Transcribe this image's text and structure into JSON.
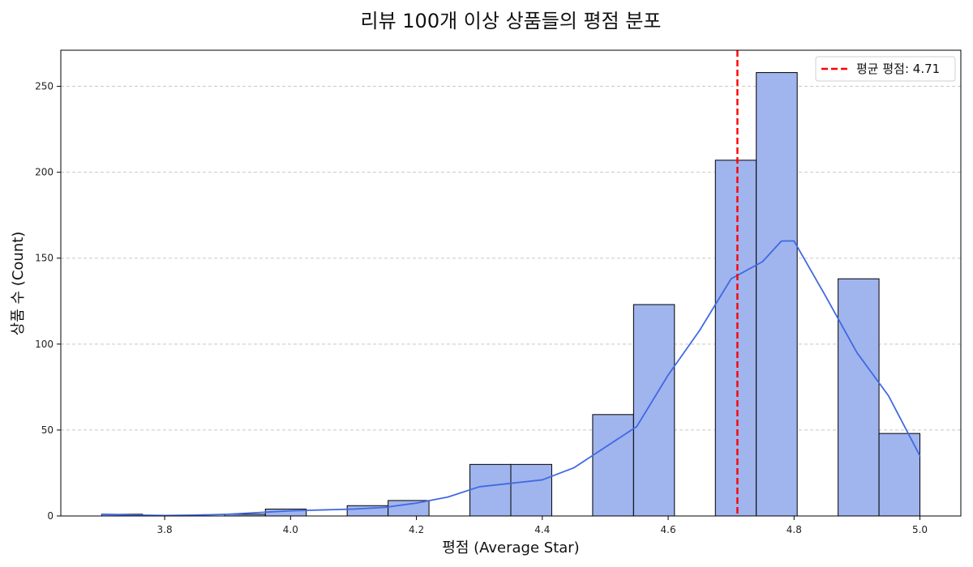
{
  "chart_data": {
    "type": "bar",
    "title": "리뷰 100개 이상 상품들의 평점 분포",
    "xlabel": "평점 (Average Star)",
    "ylabel": "상품 수 (Count)",
    "xlim": [
      3.635,
      5.065
    ],
    "ylim": [
      0,
      271
    ],
    "x_ticks": [
      3.8,
      4.0,
      4.2,
      4.4,
      4.6,
      4.8,
      5.0
    ],
    "x_tick_labels": [
      "3.8",
      "4.0",
      "4.2",
      "4.4",
      "4.6",
      "4.8",
      "5.0"
    ],
    "y_ticks": [
      0,
      50,
      100,
      150,
      200,
      250
    ],
    "y_tick_labels": [
      "0",
      "50",
      "100",
      "150",
      "200",
      "250"
    ],
    "bins": [
      {
        "start": 3.7,
        "end": 3.765,
        "count": 1
      },
      {
        "start": 3.765,
        "end": 3.83,
        "count": 0
      },
      {
        "start": 3.83,
        "end": 3.895,
        "count": 0
      },
      {
        "start": 3.895,
        "end": 3.96,
        "count": 1
      },
      {
        "start": 3.96,
        "end": 4.025,
        "count": 4
      },
      {
        "start": 4.025,
        "end": 4.09,
        "count": 0
      },
      {
        "start": 4.09,
        "end": 4.155,
        "count": 6
      },
      {
        "start": 4.155,
        "end": 4.22,
        "count": 9
      },
      {
        "start": 4.22,
        "end": 4.285,
        "count": 0
      },
      {
        "start": 4.285,
        "end": 4.35,
        "count": 30
      },
      {
        "start": 4.35,
        "end": 4.415,
        "count": 30
      },
      {
        "start": 4.415,
        "end": 4.48,
        "count": 0
      },
      {
        "start": 4.48,
        "end": 4.545,
        "count": 59
      },
      {
        "start": 4.545,
        "end": 4.61,
        "count": 123
      },
      {
        "start": 4.61,
        "end": 4.675,
        "count": 0
      },
      {
        "start": 4.675,
        "end": 4.74,
        "count": 207
      },
      {
        "start": 4.74,
        "end": 4.805,
        "count": 258
      },
      {
        "start": 4.805,
        "end": 4.87,
        "count": 0
      },
      {
        "start": 4.87,
        "end": 4.935,
        "count": 138
      },
      {
        "start": 4.935,
        "end": 5.0,
        "count": 48
      }
    ],
    "kde": [
      [
        3.7,
        1.0
      ],
      [
        3.75,
        0.5
      ],
      [
        3.8,
        0.3
      ],
      [
        3.85,
        0.5
      ],
      [
        3.9,
        1.0
      ],
      [
        3.95,
        2.0
      ],
      [
        4.0,
        3.0
      ],
      [
        4.05,
        3.5
      ],
      [
        4.1,
        4.0
      ],
      [
        4.15,
        5.0
      ],
      [
        4.2,
        7.5
      ],
      [
        4.25,
        11
      ],
      [
        4.3,
        17
      ],
      [
        4.35,
        19
      ],
      [
        4.4,
        21
      ],
      [
        4.45,
        28
      ],
      [
        4.5,
        40
      ],
      [
        4.55,
        52
      ],
      [
        4.6,
        82
      ],
      [
        4.65,
        108
      ],
      [
        4.7,
        138
      ],
      [
        4.75,
        148
      ],
      [
        4.78,
        160
      ],
      [
        4.8,
        160
      ],
      [
        4.85,
        128
      ],
      [
        4.9,
        95
      ],
      [
        4.95,
        70
      ],
      [
        5.0,
        35
      ]
    ],
    "mean_line": {
      "value": 4.71,
      "label": "평균 평점: 4.71",
      "color": "#ff0000"
    },
    "legend_placement": "top-right",
    "grid": "y-dashed",
    "colors": {
      "bar_fill": "#a0b4ee",
      "bar_stroke": "#000000",
      "kde_line": "#4169e1",
      "grid": "#c8c8c8"
    }
  }
}
